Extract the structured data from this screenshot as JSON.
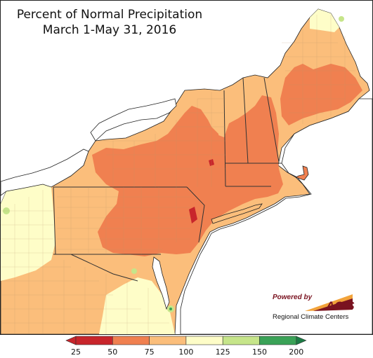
{
  "title_line1": "Percent of Normal Precipitation",
  "title_line2": "March 1-May 31, 2016",
  "logo": {
    "powered_by": "Powered by",
    "name": "ACIS",
    "subtitle": "Regional Climate Centers"
  },
  "legend": {
    "labels": [
      "25",
      "50",
      "75",
      "100",
      "125",
      "150",
      "200"
    ],
    "colors": [
      "#c8252b",
      "#f08050",
      "#fbbe7b",
      "#fefdc8",
      "#c6e58a",
      "#3aa257"
    ],
    "arrow_left_color": "#c8252b",
    "arrow_right_color": "#1d7b45"
  },
  "colors": {
    "water": "#ffffff",
    "coastline": "#222222",
    "state_border": "#333333",
    "county_border": "#b9956a"
  }
}
